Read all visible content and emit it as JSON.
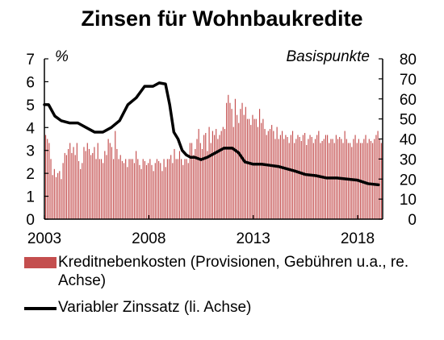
{
  "chart_data": {
    "type": "bar+line",
    "title": "Zinsen für Wohnbaukredite",
    "left_axis": {
      "unit_label": "%",
      "ylim": [
        0,
        7
      ],
      "ticks": [
        "0",
        "1",
        "2",
        "3",
        "4",
        "5",
        "6",
        "7"
      ]
    },
    "right_axis": {
      "unit_label": "Basispunkte",
      "ylim": [
        0,
        80
      ],
      "ticks": [
        "0",
        "10",
        "20",
        "30",
        "40",
        "50",
        "60",
        "70",
        "80"
      ]
    },
    "x_axis": {
      "ticks": [
        "2003",
        "2008",
        "2013",
        "2018"
      ],
      "range": [
        2003,
        2019.2
      ]
    },
    "grid": false,
    "legend_position": "bottom",
    "series": [
      {
        "name": "Kreditnebenkosten (Provisionen, Gebühren u.a., re. Achse)",
        "kind": "bar",
        "axis": "right",
        "color": "#c44e4e",
        "x_start": 2003.0,
        "x_step": 0.0833,
        "values": [
          42,
          40,
          38,
          30,
          22,
          25,
          21,
          23,
          24,
          20,
          28,
          33,
          32,
          35,
          38,
          33,
          36,
          32,
          38,
          29,
          25,
          28,
          36,
          34,
          38,
          35,
          32,
          33,
          36,
          30,
          38,
          30,
          30,
          28,
          34,
          32,
          40,
          38,
          36,
          30,
          44,
          35,
          30,
          32,
          29,
          28,
          30,
          26,
          30,
          30,
          30,
          28,
          34,
          30,
          27,
          25,
          30,
          29,
          27,
          28,
          30,
          27,
          24,
          28,
          30,
          29,
          28,
          24,
          30,
          26,
          30,
          30,
          32,
          28,
          35,
          30,
          30,
          34,
          30,
          27,
          30,
          30,
          28,
          38,
          38,
          32,
          35,
          40,
          45,
          38,
          35,
          42,
          43,
          34,
          46,
          38,
          44,
          42,
          45,
          40,
          42,
          44,
          46,
          45,
          58,
          62,
          58,
          55,
          46,
          60,
          52,
          48,
          55,
          58,
          52,
          56,
          50,
          50,
          47,
          52,
          50,
          50,
          46,
          55,
          48,
          50,
          45,
          42,
          44,
          45,
          47,
          44,
          40,
          46,
          40,
          42,
          44,
          40,
          42,
          41,
          38,
          42,
          44,
          38,
          40,
          42,
          41,
          39,
          42,
          43,
          37,
          40,
          42,
          41,
          38,
          40,
          42,
          44,
          38,
          39,
          40,
          42,
          42,
          38,
          40,
          40,
          38,
          42,
          40,
          41,
          40,
          38,
          44,
          40,
          38,
          38,
          36,
          40,
          42,
          38,
          40,
          38,
          38,
          40,
          42,
          38,
          40,
          39,
          38,
          40,
          42,
          44,
          40,
          38,
          42,
          41,
          40,
          38,
          44,
          45
        ]
      },
      {
        "name": "Variabler Zinssatz (li. Achse)",
        "kind": "line",
        "axis": "left",
        "color": "#000000",
        "x": [
          2003.0,
          2003.2,
          2003.5,
          2003.8,
          2004.2,
          2004.6,
          2005.0,
          2005.4,
          2005.8,
          2006.2,
          2006.6,
          2007.0,
          2007.4,
          2007.8,
          2008.2,
          2008.5,
          2008.8,
          2009.0,
          2009.2,
          2009.4,
          2009.6,
          2009.8,
          2010.0,
          2010.2,
          2010.5,
          2010.8,
          2011.2,
          2011.6,
          2012.0,
          2012.3,
          2012.6,
          2013.0,
          2013.4,
          2013.8,
          2014.2,
          2014.6,
          2015.0,
          2015.5,
          2016.0,
          2016.5,
          2017.0,
          2017.5,
          2018.0,
          2018.5,
          2019.0
        ],
        "values": [
          5.0,
          5.0,
          4.5,
          4.3,
          4.2,
          4.2,
          4.0,
          3.8,
          3.8,
          4.0,
          4.3,
          5.0,
          5.3,
          5.8,
          5.8,
          5.95,
          5.9,
          5.0,
          3.8,
          3.5,
          3.0,
          2.8,
          2.7,
          2.7,
          2.6,
          2.7,
          2.9,
          3.1,
          3.1,
          2.9,
          2.5,
          2.4,
          2.4,
          2.35,
          2.3,
          2.2,
          2.1,
          1.95,
          1.9,
          1.8,
          1.8,
          1.75,
          1.7,
          1.55,
          1.5
        ]
      }
    ]
  }
}
